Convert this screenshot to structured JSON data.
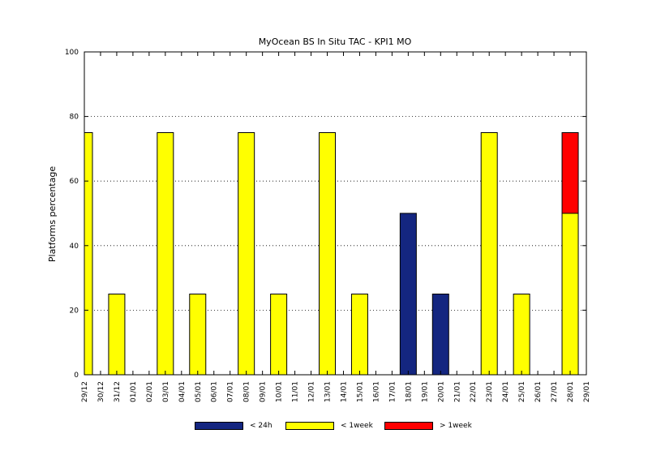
{
  "chart_data": {
    "type": "bar",
    "stacked": true,
    "title": "MyOcean  BS In Situ TAC - KPI1  MO",
    "ylabel": "Platforms percentage",
    "xlabel": "",
    "ylim": [
      0,
      100
    ],
    "yticks": [
      0,
      20,
      40,
      60,
      80,
      100
    ],
    "grid": "horizontal-dotted",
    "legend_position": "bottom",
    "categories": [
      "29/12",
      "30/12",
      "31/12",
      "01/01",
      "02/01",
      "03/01",
      "04/01",
      "05/01",
      "06/01",
      "07/01",
      "08/01",
      "09/01",
      "10/01",
      "11/01",
      "12/01",
      "13/01",
      "14/01",
      "15/01",
      "16/01",
      "17/01",
      "18/01",
      "19/01",
      "20/01",
      "21/01",
      "22/01",
      "23/01",
      "24/01",
      "25/01",
      "26/01",
      "27/01",
      "28/01",
      "29/01"
    ],
    "series": [
      {
        "name": "< 24h",
        "color": "#142680",
        "values": [
          0,
          0,
          0,
          0,
          0,
          0,
          0,
          0,
          0,
          0,
          0,
          0,
          0,
          0,
          0,
          0,
          0,
          0,
          0,
          0,
          50,
          0,
          25,
          0,
          0,
          0,
          0,
          0,
          0,
          0,
          0,
          0
        ]
      },
      {
        "name": "< 1week",
        "color": "#ffff00",
        "values": [
          75,
          0,
          25,
          0,
          0,
          75,
          0,
          25,
          0,
          0,
          75,
          0,
          25,
          0,
          0,
          75,
          0,
          25,
          0,
          0,
          0,
          0,
          0,
          0,
          0,
          75,
          0,
          25,
          0,
          0,
          50,
          0
        ]
      },
      {
        "name": "> 1week",
        "color": "#ff0000",
        "values": [
          0,
          0,
          0,
          0,
          0,
          0,
          0,
          0,
          0,
          0,
          0,
          0,
          0,
          0,
          0,
          0,
          0,
          0,
          0,
          0,
          0,
          0,
          0,
          0,
          0,
          0,
          0,
          0,
          0,
          0,
          25,
          0
        ]
      }
    ]
  }
}
